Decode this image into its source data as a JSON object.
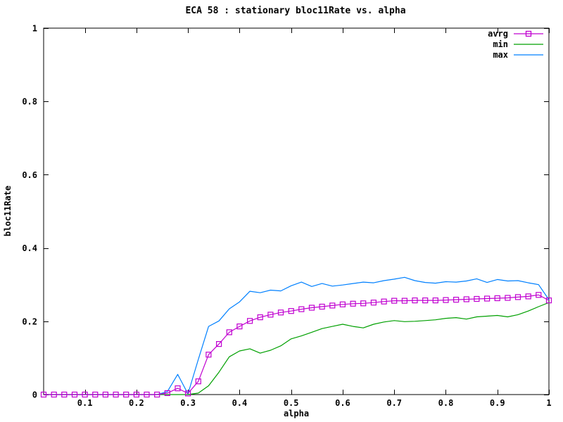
{
  "chart_data": {
    "type": "line",
    "title": "ECA 58 : stationary bloc11Rate vs. alpha",
    "xlabel": "alpha",
    "ylabel": "bloc11Rate",
    "xlim": [
      0.02,
      1.0
    ],
    "ylim": [
      0,
      1
    ],
    "grid": false,
    "legend_position": "top-right-inside",
    "xticks": [
      0.1,
      0.2,
      0.3,
      0.4,
      0.5,
      0.6,
      0.7,
      0.8,
      0.9,
      1
    ],
    "xtick_labels": [
      "0.1",
      "0.2",
      "0.3",
      "0.4",
      "0.5",
      "0.6",
      "0.7",
      "0.8",
      "0.9",
      "1"
    ],
    "yticks": [
      0,
      0.2,
      0.4,
      0.6,
      0.8,
      1
    ],
    "ytick_labels": [
      "0",
      "0.2",
      "0.4",
      "0.6",
      "0.8",
      "1"
    ],
    "x": [
      0.02,
      0.04,
      0.06,
      0.08,
      0.1,
      0.12,
      0.14,
      0.16,
      0.18,
      0.2,
      0.22,
      0.24,
      0.26,
      0.28,
      0.3,
      0.32,
      0.34,
      0.36,
      0.38,
      0.4,
      0.42,
      0.44,
      0.46,
      0.48,
      0.5,
      0.52,
      0.54,
      0.56,
      0.58,
      0.6,
      0.62,
      0.64,
      0.66,
      0.68,
      0.7,
      0.72,
      0.74,
      0.76,
      0.78,
      0.8,
      0.82,
      0.84,
      0.86,
      0.88,
      0.9,
      0.92,
      0.94,
      0.96,
      0.98,
      1.0
    ],
    "series": [
      {
        "name": "avrg",
        "color": "#c000d0",
        "marker": "open-square",
        "values": [
          0,
          0,
          0,
          0,
          0,
          0,
          0,
          0,
          0,
          0,
          0,
          0,
          0.004,
          0.017,
          0.003,
          0.036,
          0.109,
          0.138,
          0.17,
          0.186,
          0.201,
          0.211,
          0.218,
          0.224,
          0.228,
          0.233,
          0.237,
          0.24,
          0.243,
          0.246,
          0.248,
          0.249,
          0.251,
          0.254,
          0.256,
          0.256,
          0.257,
          0.257,
          0.257,
          0.258,
          0.259,
          0.26,
          0.261,
          0.262,
          0.263,
          0.264,
          0.266,
          0.268,
          0.272,
          0.257
        ]
      },
      {
        "name": "min",
        "color": "#00a000",
        "marker": "none",
        "values": [
          0,
          0,
          0,
          0,
          0,
          0,
          0,
          0,
          0,
          0,
          0,
          0,
          0,
          0,
          0,
          0.004,
          0.024,
          0.061,
          0.103,
          0.119,
          0.125,
          0.113,
          0.121,
          0.133,
          0.152,
          0.16,
          0.17,
          0.18,
          0.186,
          0.192,
          0.186,
          0.182,
          0.192,
          0.198,
          0.202,
          0.199,
          0.2,
          0.202,
          0.204,
          0.208,
          0.21,
          0.206,
          0.212,
          0.214,
          0.216,
          0.212,
          0.218,
          0.228,
          0.24,
          0.251
        ]
      },
      {
        "name": "max",
        "color": "#0080ff",
        "marker": "none",
        "values": [
          0,
          0,
          0,
          0,
          0,
          0,
          0,
          0,
          0,
          0,
          0,
          0,
          0.008,
          0.055,
          0.002,
          0.096,
          0.186,
          0.201,
          0.234,
          0.253,
          0.282,
          0.278,
          0.285,
          0.283,
          0.297,
          0.307,
          0.295,
          0.303,
          0.296,
          0.299,
          0.303,
          0.307,
          0.305,
          0.311,
          0.315,
          0.32,
          0.311,
          0.306,
          0.304,
          0.308,
          0.307,
          0.31,
          0.316,
          0.306,
          0.314,
          0.31,
          0.311,
          0.305,
          0.3,
          0.259
        ]
      }
    ]
  },
  "frame": {
    "border_color": "#000000",
    "background": "#ffffff"
  }
}
